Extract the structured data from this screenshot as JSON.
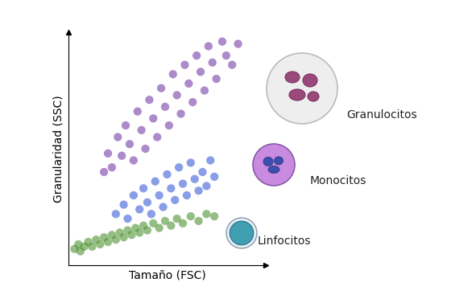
{
  "chart_data": {
    "type": "scatter",
    "x_label": "Tamaño (FSC)",
    "y_label": "Granularidad (SSC)",
    "xlim": [
      0,
      100
    ],
    "ylim": [
      0,
      100
    ],
    "tick_labels": false,
    "grid": false,
    "series": [
      {
        "name": "Granulocitos",
        "color": "#6a2ca0",
        "marker": "o",
        "x": [
          18,
          20,
          22,
          25,
          27,
          29,
          31,
          33,
          35,
          37,
          39,
          41,
          43,
          45,
          47,
          49,
          51,
          53,
          55,
          57,
          59,
          61,
          63,
          65,
          67,
          69,
          71,
          73,
          75,
          78,
          80,
          83,
          86
        ],
        "values": [
          40,
          48,
          42,
          55,
          47,
          60,
          52,
          45,
          66,
          58,
          50,
          71,
          63,
          55,
          76,
          68,
          60,
          82,
          73,
          65,
          86,
          78,
          70,
          90,
          83,
          75,
          94,
          87,
          80,
          96,
          90,
          86,
          95
        ]
      },
      {
        "name": "Monocitos",
        "color": "#2b4fd6",
        "marker": "o",
        "x": [
          24,
          28,
          30,
          33,
          36,
          38,
          40,
          42,
          44,
          46,
          48,
          50,
          52,
          54,
          56,
          58,
          60,
          62,
          64,
          66,
          68,
          70,
          72,
          74
        ],
        "values": [
          22,
          26,
          20,
          30,
          24,
          33,
          27,
          22,
          36,
          30,
          25,
          39,
          33,
          28,
          42,
          35,
          30,
          44,
          37,
          32,
          40,
          34,
          45,
          38
        ]
      },
      {
        "name": "Linfocitos",
        "color": "#3f8a1f",
        "marker": "o",
        "x": [
          3,
          5,
          6,
          8,
          10,
          12,
          14,
          16,
          18,
          20,
          22,
          24,
          26,
          28,
          30,
          32,
          34,
          36,
          38,
          40,
          43,
          46,
          49,
          52,
          55,
          58,
          62,
          66,
          70,
          74
        ],
        "values": [
          7,
          9,
          6,
          8,
          10,
          8,
          11,
          9,
          12,
          10,
          13,
          11,
          14,
          12,
          15,
          13,
          16,
          14,
          17,
          15,
          18,
          16,
          19,
          17,
          20,
          18,
          21,
          19,
          22,
          21
        ]
      }
    ]
  }
}
